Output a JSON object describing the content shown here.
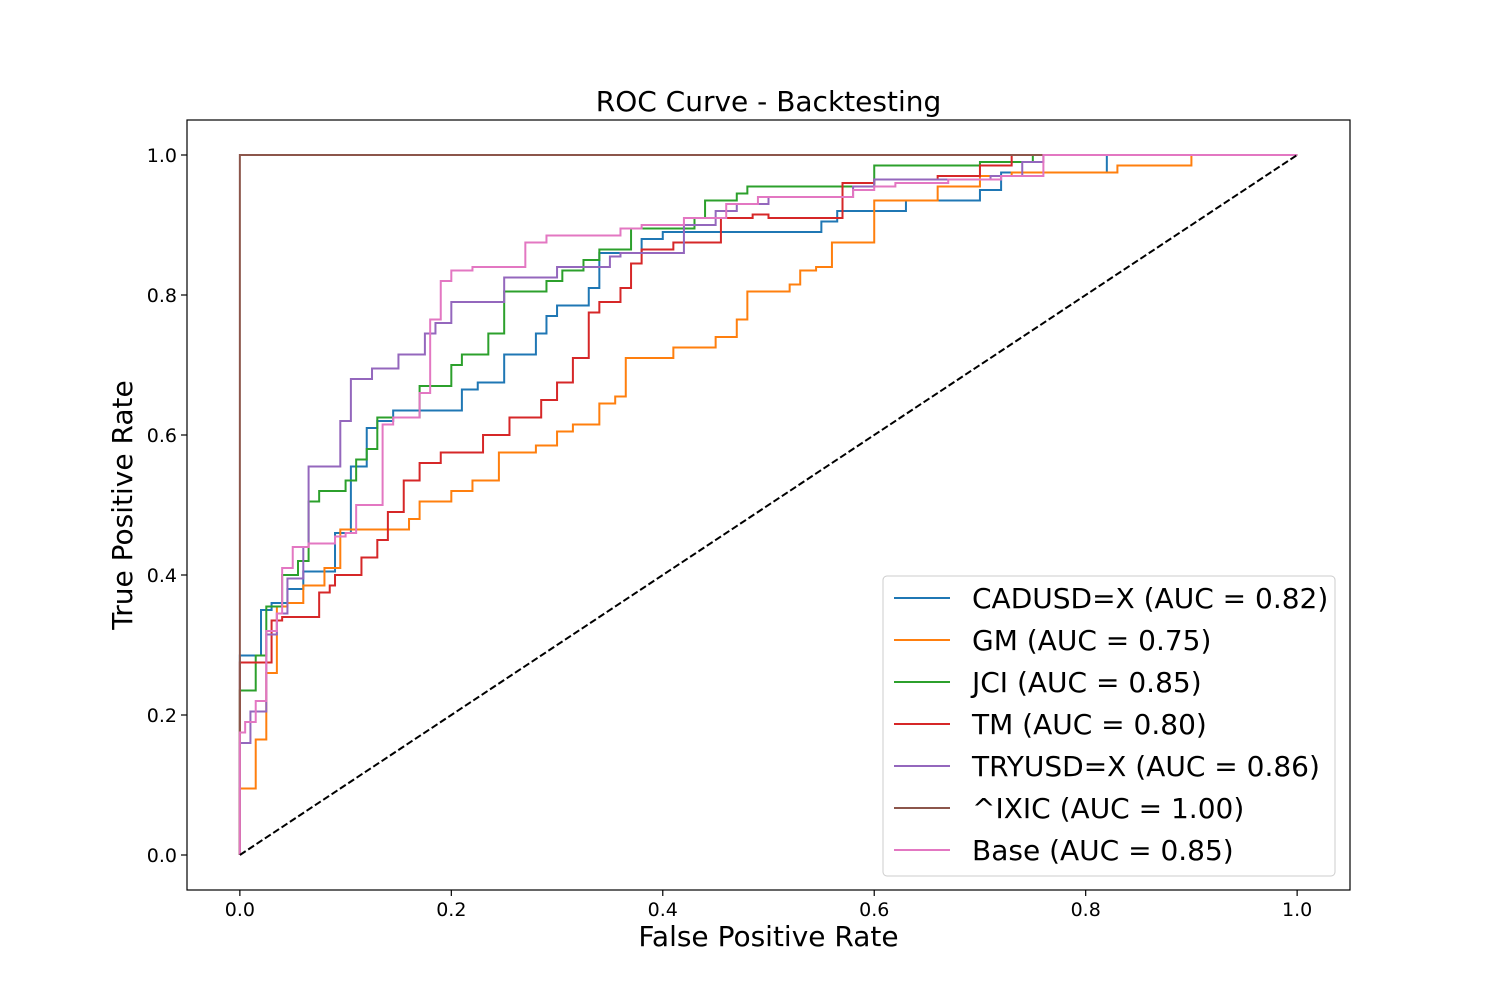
{
  "chart_data": {
    "type": "line",
    "title": "ROC Curve - Backtesting",
    "xlabel": "False Positive Rate",
    "ylabel": "True Positive Rate",
    "xlim": [
      -0.05,
      1.05
    ],
    "ylim": [
      -0.05,
      1.05
    ],
    "xticks": [
      0.0,
      0.2,
      0.4,
      0.6,
      0.8,
      1.0
    ],
    "yticks": [
      0.0,
      0.2,
      0.4,
      0.6,
      0.8,
      1.0
    ],
    "xtick_labels": [
      "0.0",
      "0.2",
      "0.4",
      "0.6",
      "0.8",
      "1.0"
    ],
    "ytick_labels": [
      "0.0",
      "0.2",
      "0.4",
      "0.6",
      "0.8",
      "1.0"
    ],
    "grid": false,
    "legend_position": "lower-right",
    "diagonal": {
      "x": [
        0,
        1
      ],
      "y": [
        0,
        1
      ],
      "color": "#000000",
      "style": "dashed"
    },
    "series": [
      {
        "name": "CADUSD=X (AUC = 0.82)",
        "color": "#1f77b4",
        "x": [
          0,
          0,
          0.02,
          0.02,
          0.03,
          0.03,
          0.045,
          0.045,
          0.06,
          0.06,
          0.07,
          0.07,
          0.09,
          0.09,
          0.105,
          0.105,
          0.12,
          0.12,
          0.13,
          0.13,
          0.145,
          0.145,
          0.21,
          0.21,
          0.225,
          0.225,
          0.25,
          0.25,
          0.28,
          0.28,
          0.29,
          0.29,
          0.3,
          0.3,
          0.33,
          0.33,
          0.34,
          0.34,
          0.38,
          0.38,
          0.4,
          0.4,
          0.55,
          0.55,
          0.565,
          0.565,
          0.58,
          0.58,
          0.63,
          0.63,
          0.7,
          0.7,
          0.72,
          0.72,
          0.82,
          0.82,
          1.0
        ],
        "y": [
          0,
          0.285,
          0.285,
          0.35,
          0.35,
          0.36,
          0.36,
          0.38,
          0.38,
          0.405,
          0.405,
          0.405,
          0.405,
          0.46,
          0.46,
          0.555,
          0.555,
          0.61,
          0.61,
          0.62,
          0.62,
          0.635,
          0.635,
          0.665,
          0.665,
          0.675,
          0.675,
          0.715,
          0.715,
          0.745,
          0.745,
          0.77,
          0.77,
          0.785,
          0.785,
          0.81,
          0.81,
          0.86,
          0.86,
          0.88,
          0.88,
          0.89,
          0.89,
          0.905,
          0.905,
          0.92,
          0.92,
          0.92,
          0.92,
          0.935,
          0.935,
          0.95,
          0.95,
          0.975,
          0.975,
          1.0,
          1.0
        ]
      },
      {
        "name": "GM (AUC = 0.75)",
        "color": "#ff7f0e",
        "x": [
          0,
          0,
          0.015,
          0.015,
          0.025,
          0.025,
          0.035,
          0.035,
          0.045,
          0.045,
          0.06,
          0.06,
          0.08,
          0.08,
          0.095,
          0.095,
          0.16,
          0.16,
          0.17,
          0.17,
          0.2,
          0.2,
          0.22,
          0.22,
          0.245,
          0.245,
          0.28,
          0.28,
          0.3,
          0.3,
          0.315,
          0.315,
          0.34,
          0.34,
          0.355,
          0.355,
          0.365,
          0.365,
          0.41,
          0.41,
          0.45,
          0.45,
          0.47,
          0.47,
          0.48,
          0.48,
          0.52,
          0.52,
          0.53,
          0.53,
          0.545,
          0.545,
          0.56,
          0.56,
          0.6,
          0.6,
          0.66,
          0.66,
          0.7,
          0.7,
          0.73,
          0.73,
          0.83,
          0.83,
          0.9,
          0.9,
          1.0
        ],
        "y": [
          0,
          0.095,
          0.095,
          0.165,
          0.165,
          0.26,
          0.26,
          0.355,
          0.355,
          0.36,
          0.36,
          0.385,
          0.385,
          0.41,
          0.41,
          0.465,
          0.465,
          0.48,
          0.48,
          0.505,
          0.505,
          0.52,
          0.52,
          0.535,
          0.535,
          0.575,
          0.575,
          0.585,
          0.585,
          0.605,
          0.605,
          0.615,
          0.615,
          0.645,
          0.645,
          0.655,
          0.655,
          0.71,
          0.71,
          0.725,
          0.725,
          0.74,
          0.74,
          0.765,
          0.765,
          0.805,
          0.805,
          0.815,
          0.815,
          0.835,
          0.835,
          0.84,
          0.84,
          0.875,
          0.875,
          0.935,
          0.935,
          0.955,
          0.955,
          0.97,
          0.97,
          0.975,
          0.975,
          0.985,
          0.985,
          1.0,
          1.0
        ]
      },
      {
        "name": "JCI (AUC = 0.85)",
        "color": "#2ca02c",
        "x": [
          0,
          0,
          0.015,
          0.015,
          0.025,
          0.025,
          0.04,
          0.04,
          0.055,
          0.055,
          0.065,
          0.065,
          0.075,
          0.075,
          0.1,
          0.1,
          0.11,
          0.11,
          0.12,
          0.12,
          0.13,
          0.13,
          0.17,
          0.17,
          0.2,
          0.2,
          0.21,
          0.21,
          0.235,
          0.235,
          0.25,
          0.25,
          0.29,
          0.29,
          0.305,
          0.305,
          0.325,
          0.325,
          0.34,
          0.34,
          0.37,
          0.37,
          0.43,
          0.43,
          0.44,
          0.44,
          0.47,
          0.47,
          0.48,
          0.48,
          0.6,
          0.6,
          0.65,
          0.65,
          0.7,
          0.7,
          0.75,
          0.75,
          1.0
        ],
        "y": [
          0,
          0.235,
          0.235,
          0.285,
          0.285,
          0.355,
          0.355,
          0.4,
          0.4,
          0.42,
          0.42,
          0.505,
          0.505,
          0.52,
          0.52,
          0.535,
          0.535,
          0.565,
          0.565,
          0.58,
          0.58,
          0.625,
          0.625,
          0.67,
          0.67,
          0.7,
          0.7,
          0.715,
          0.715,
          0.745,
          0.745,
          0.805,
          0.805,
          0.82,
          0.82,
          0.835,
          0.835,
          0.85,
          0.85,
          0.865,
          0.865,
          0.895,
          0.895,
          0.91,
          0.91,
          0.935,
          0.935,
          0.945,
          0.945,
          0.955,
          0.955,
          0.985,
          0.985,
          0.985,
          0.985,
          0.99,
          0.99,
          1.0,
          1.0
        ]
      },
      {
        "name": "TM (AUC = 0.80)",
        "color": "#d62728",
        "x": [
          0,
          0,
          0.03,
          0.03,
          0.04,
          0.04,
          0.075,
          0.075,
          0.085,
          0.085,
          0.09,
          0.09,
          0.115,
          0.115,
          0.13,
          0.13,
          0.14,
          0.14,
          0.155,
          0.155,
          0.17,
          0.17,
          0.19,
          0.19,
          0.23,
          0.23,
          0.255,
          0.255,
          0.285,
          0.285,
          0.3,
          0.3,
          0.315,
          0.315,
          0.33,
          0.33,
          0.34,
          0.34,
          0.36,
          0.36,
          0.37,
          0.37,
          0.38,
          0.38,
          0.41,
          0.41,
          0.455,
          0.455,
          0.485,
          0.485,
          0.5,
          0.5,
          0.57,
          0.57,
          0.6,
          0.6,
          0.66,
          0.66,
          0.7,
          0.7,
          0.73,
          0.73,
          1.0
        ],
        "y": [
          0,
          0.275,
          0.275,
          0.335,
          0.335,
          0.34,
          0.34,
          0.375,
          0.375,
          0.385,
          0.385,
          0.4,
          0.4,
          0.425,
          0.425,
          0.45,
          0.45,
          0.49,
          0.49,
          0.535,
          0.535,
          0.56,
          0.56,
          0.575,
          0.575,
          0.6,
          0.6,
          0.625,
          0.625,
          0.65,
          0.65,
          0.675,
          0.675,
          0.71,
          0.71,
          0.775,
          0.775,
          0.79,
          0.79,
          0.81,
          0.81,
          0.845,
          0.845,
          0.865,
          0.865,
          0.875,
          0.875,
          0.91,
          0.91,
          0.915,
          0.915,
          0.91,
          0.91,
          0.96,
          0.96,
          0.965,
          0.965,
          0.97,
          0.97,
          0.985,
          0.985,
          1.0,
          1.0
        ]
      },
      {
        "name": "TRYUSD=X (AUC = 0.86)",
        "color": "#9467bd",
        "x": [
          0,
          0,
          0.01,
          0.01,
          0.025,
          0.025,
          0.035,
          0.035,
          0.045,
          0.045,
          0.06,
          0.06,
          0.065,
          0.065,
          0.095,
          0.095,
          0.105,
          0.105,
          0.125,
          0.125,
          0.15,
          0.15,
          0.175,
          0.175,
          0.185,
          0.185,
          0.2,
          0.2,
          0.25,
          0.25,
          0.3,
          0.3,
          0.35,
          0.35,
          0.36,
          0.36,
          0.42,
          0.42,
          0.45,
          0.45,
          0.47,
          0.47,
          0.5,
          0.5,
          0.58,
          0.58,
          0.6,
          0.6,
          0.71,
          0.71,
          0.74,
          0.74,
          0.76,
          0.76,
          1.0
        ],
        "y": [
          0,
          0.16,
          0.16,
          0.205,
          0.205,
          0.315,
          0.315,
          0.345,
          0.345,
          0.395,
          0.395,
          0.44,
          0.44,
          0.555,
          0.555,
          0.62,
          0.62,
          0.68,
          0.68,
          0.695,
          0.695,
          0.715,
          0.715,
          0.745,
          0.745,
          0.76,
          0.76,
          0.79,
          0.79,
          0.825,
          0.825,
          0.84,
          0.84,
          0.855,
          0.855,
          0.86,
          0.86,
          0.9,
          0.9,
          0.92,
          0.92,
          0.93,
          0.93,
          0.94,
          0.94,
          0.955,
          0.955,
          0.965,
          0.965,
          0.97,
          0.97,
          0.99,
          0.99,
          1.0,
          1.0
        ]
      },
      {
        "name": "^IXIC (AUC = 1.00)",
        "color": "#8c564b",
        "x": [
          0,
          0,
          1.0
        ],
        "y": [
          0,
          1.0,
          1.0
        ]
      },
      {
        "name": "Base (AUC = 0.85)",
        "color": "#e377c2",
        "x": [
          0,
          0,
          0.005,
          0.005,
          0.015,
          0.015,
          0.025,
          0.025,
          0.035,
          0.035,
          0.04,
          0.04,
          0.05,
          0.05,
          0.065,
          0.065,
          0.09,
          0.09,
          0.1,
          0.1,
          0.11,
          0.11,
          0.135,
          0.135,
          0.145,
          0.145,
          0.17,
          0.17,
          0.18,
          0.18,
          0.19,
          0.19,
          0.2,
          0.2,
          0.22,
          0.22,
          0.27,
          0.27,
          0.29,
          0.29,
          0.36,
          0.36,
          0.38,
          0.38,
          0.42,
          0.42,
          0.46,
          0.46,
          0.49,
          0.49,
          0.58,
          0.58,
          0.6,
          0.6,
          0.62,
          0.62,
          0.67,
          0.67,
          0.72,
          0.72,
          0.76,
          0.76,
          1.0
        ],
        "y": [
          0,
          0.175,
          0.175,
          0.19,
          0.19,
          0.22,
          0.22,
          0.32,
          0.32,
          0.345,
          0.345,
          0.41,
          0.41,
          0.44,
          0.44,
          0.445,
          0.445,
          0.455,
          0.455,
          0.46,
          0.46,
          0.5,
          0.5,
          0.615,
          0.615,
          0.625,
          0.625,
          0.66,
          0.66,
          0.765,
          0.765,
          0.82,
          0.82,
          0.835,
          0.835,
          0.84,
          0.84,
          0.875,
          0.875,
          0.885,
          0.885,
          0.895,
          0.895,
          0.9,
          0.9,
          0.91,
          0.91,
          0.93,
          0.93,
          0.94,
          0.94,
          0.95,
          0.95,
          0.955,
          0.955,
          0.96,
          0.96,
          0.965,
          0.965,
          0.97,
          0.97,
          1.0,
          1.0
        ]
      }
    ]
  }
}
